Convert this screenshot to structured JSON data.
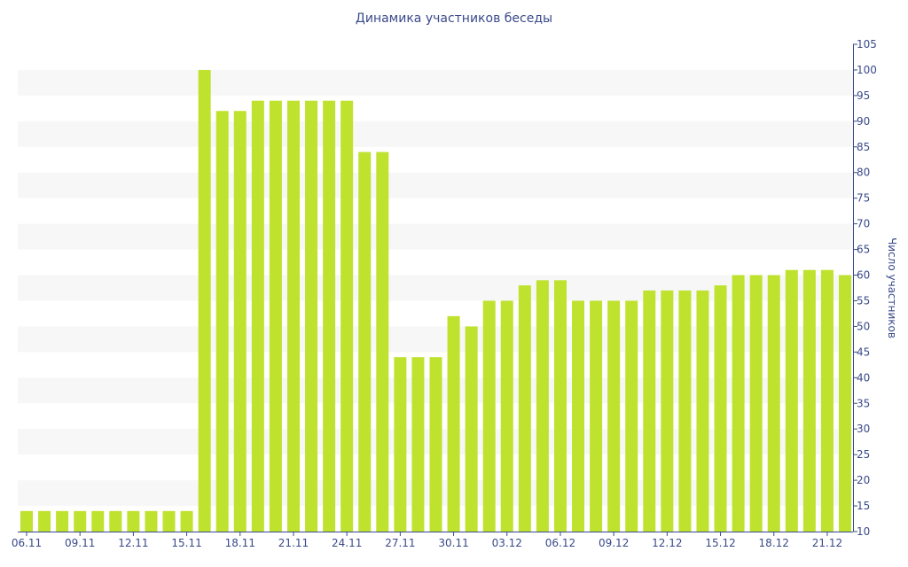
{
  "colors": {
    "bar": "#bfe22e",
    "band": "#f7f7f7",
    "axis_text": "#3a4a8a",
    "axis_line": "#3a4a8a",
    "title": "#3a4a8a"
  },
  "chart_data": {
    "type": "bar",
    "title": "Динамика участников беседы",
    "xlabel": "",
    "ylabel": "Число участников",
    "y_axis_side": "right",
    "ylim": [
      10,
      105
    ],
    "y_tick_step": 5,
    "grid": "alternating horizontal bands",
    "legend": "none",
    "x_tick_labels": [
      "06.11",
      "09.11",
      "12.11",
      "15.11",
      "18.11",
      "21.11",
      "24.11",
      "27.11",
      "30.11",
      "03.12",
      "06.12",
      "09.12",
      "12.12",
      "15.12",
      "18.12",
      "21.12"
    ],
    "categories": [
      "06.11",
      "07.11",
      "08.11",
      "09.11",
      "10.11",
      "11.11",
      "12.11",
      "13.11",
      "14.11",
      "15.11",
      "16.11",
      "17.11",
      "18.11",
      "19.11",
      "20.11",
      "21.11",
      "22.11",
      "23.11",
      "24.11",
      "25.11",
      "26.11",
      "27.11",
      "28.11",
      "29.11",
      "30.11",
      "01.12",
      "02.12",
      "03.12",
      "04.12",
      "05.12",
      "06.12",
      "07.12",
      "08.12",
      "09.12",
      "10.12",
      "11.12",
      "12.12",
      "13.12",
      "14.12",
      "15.12",
      "16.12",
      "17.12",
      "18.12",
      "19.12",
      "20.12",
      "21.12",
      "22.12"
    ],
    "values": [
      14,
      14,
      14,
      14,
      14,
      14,
      14,
      14,
      14,
      14,
      100,
      92,
      92,
      94,
      94,
      94,
      94,
      94,
      94,
      84,
      84,
      44,
      44,
      44,
      52,
      50,
      55,
      55,
      58,
      59,
      59,
      55,
      55,
      55,
      55,
      57,
      57,
      57,
      57,
      58,
      60,
      60,
      60,
      61,
      61,
      61,
      60
    ]
  }
}
